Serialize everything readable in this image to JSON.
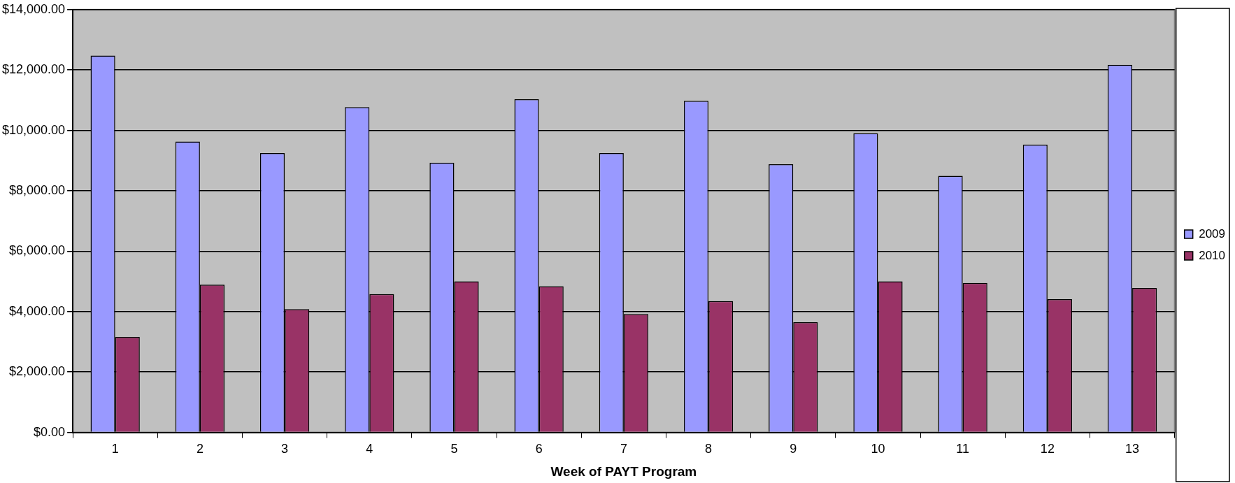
{
  "chart_data": {
    "type": "bar",
    "xlabel": "Week of PAYT Program",
    "categories": [
      "1",
      "2",
      "3",
      "4",
      "5",
      "6",
      "7",
      "8",
      "9",
      "10",
      "11",
      "12",
      "13"
    ],
    "series": [
      {
        "name": "2009",
        "color": "#9999ff",
        "values": [
          12480,
          9630,
          9250,
          10770,
          8930,
          11030,
          9250,
          10980,
          8880,
          9910,
          8500,
          9530,
          12170
        ]
      },
      {
        "name": "2010",
        "color": "#993366",
        "values": [
          3160,
          4890,
          4080,
          4580,
          5000,
          4840,
          3920,
          4350,
          3650,
          5000,
          4950,
          4410,
          4780
        ]
      }
    ],
    "ylim": [
      0,
      14000
    ],
    "yticks": [
      {
        "value": 0,
        "label": "$0.00"
      },
      {
        "value": 2000,
        "label": "$2,000.00"
      },
      {
        "value": 4000,
        "label": "$4,000.00"
      },
      {
        "value": 6000,
        "label": "$6,000.00"
      },
      {
        "value": 8000,
        "label": "$8,000.00"
      },
      {
        "value": 10000,
        "label": "$10,000.00"
      },
      {
        "value": 12000,
        "label": "$12,000.00"
      },
      {
        "value": 14000,
        "label": "$14,000.00"
      }
    ],
    "grid": "y",
    "legend": "right"
  }
}
